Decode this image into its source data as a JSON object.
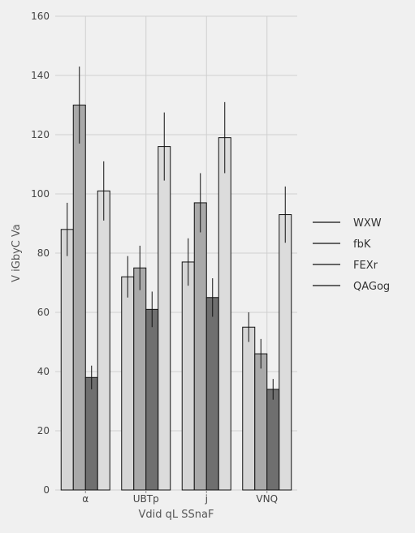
{
  "chart_data": {
    "type": "bar",
    "xlabel": "Vdid qL SSnaF",
    "ylabel": "V iGbyC Va",
    "categories": [
      "α",
      "UBTp",
      "j",
      "VNQ"
    ],
    "ylim": [
      0,
      160
    ],
    "yticks": [
      0,
      20,
      40,
      60,
      80,
      100,
      120,
      140,
      160
    ],
    "grid": true,
    "legend_position": "right",
    "series": [
      {
        "name": "WXW",
        "color": "#d6d6d6",
        "values": [
          88,
          72,
          77,
          55
        ],
        "errors": [
          9,
          7,
          8,
          5
        ]
      },
      {
        "name": "fbK",
        "color": "#a9a9a9",
        "values": [
          130,
          75,
          97,
          46
        ],
        "errors": [
          13,
          7.5,
          10,
          5
        ]
      },
      {
        "name": "FEXr",
        "color": "#6f6f6f",
        "values": [
          38,
          61,
          65,
          34
        ],
        "errors": [
          4,
          6,
          6.5,
          3.5
        ]
      },
      {
        "name": "QAGog",
        "color": "#dcdcdc",
        "values": [
          101,
          116,
          119,
          93
        ],
        "errors": [
          10,
          11.5,
          12,
          9.5
        ]
      }
    ]
  }
}
